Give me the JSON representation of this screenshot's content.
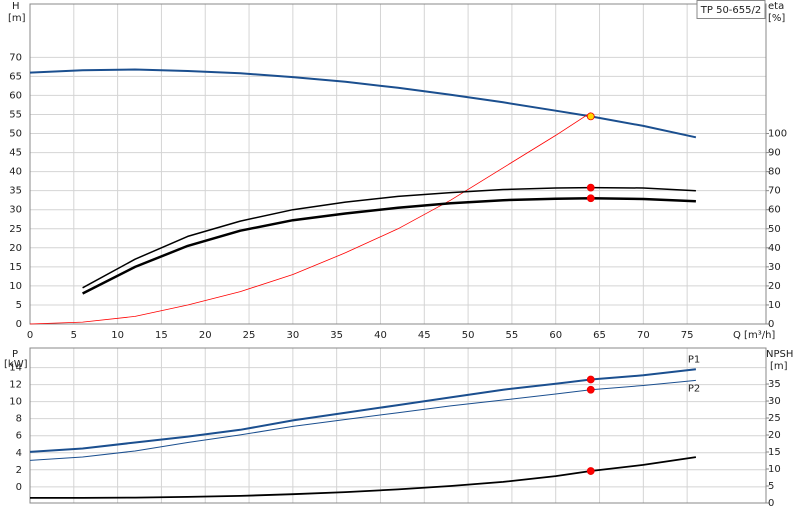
{
  "chart_data": [
    {
      "type": "line",
      "title": "TP 50-655/2",
      "ylabel": "H",
      "yunit": "[m]",
      "y2label": "eta",
      "y2unit": "[%]",
      "xlabel": "Q [m³/h]",
      "xlim": [
        0,
        84
      ],
      "xticks": [
        0,
        5,
        10,
        15,
        20,
        25,
        30,
        35,
        40,
        45,
        50,
        55,
        60,
        65,
        70,
        75
      ],
      "ylim": [
        0,
        84
      ],
      "yticks": [
        0,
        5,
        10,
        15,
        20,
        25,
        30,
        35,
        40,
        45,
        50,
        55,
        60,
        65,
        70
      ],
      "y2lim": [
        0,
        168
      ],
      "y2ticks": [
        0,
        10,
        20,
        30,
        40,
        50,
        60,
        70,
        80,
        90,
        100
      ],
      "grid": true,
      "show_xtick_labels": true,
      "series": [
        {
          "color": "#1b4f8f",
          "linewidth": 2,
          "x": [
            0,
            6,
            12,
            18,
            24,
            30,
            36,
            42,
            48,
            54,
            60,
            64,
            70,
            76
          ],
          "values": [
            66,
            66.6,
            66.8,
            66.4,
            65.8,
            64.8,
            63.6,
            62,
            60.2,
            58.2,
            56,
            54.5,
            52,
            49
          ]
        },
        {
          "color": "#ff0000",
          "linewidth": 0.8,
          "x": [
            0,
            6,
            12,
            18,
            24,
            30,
            36,
            42,
            48,
            54,
            60,
            64
          ],
          "values": [
            0,
            0.5,
            2,
            5,
            8.5,
            13,
            18.7,
            25,
            32.5,
            41,
            49.5,
            55.5
          ]
        },
        {
          "color": "#000000",
          "linewidth": 1.5,
          "axis": "y2",
          "x": [
            6,
            12,
            18,
            24,
            30,
            36,
            42,
            48,
            54,
            60,
            64,
            70,
            76
          ],
          "values": [
            19,
            34,
            46,
            54,
            60,
            64,
            67,
            69,
            70.6,
            71.4,
            71.6,
            71.4,
            70
          ]
        },
        {
          "color": "#000000",
          "linewidth": 2.5,
          "axis": "y2",
          "x": [
            6,
            12,
            18,
            24,
            30,
            36,
            42,
            48,
            54,
            60,
            64,
            70,
            76
          ],
          "values": [
            16,
            30,
            41,
            49,
            54.5,
            58,
            61,
            63.4,
            65,
            65.8,
            66,
            65.6,
            64.4
          ]
        },
        {
          "color": "#ff0000",
          "marker": true,
          "axis": "y2",
          "x": [
            64
          ],
          "values": [
            71.6
          ]
        },
        {
          "color": "#ff0000",
          "marker": true,
          "axis": "y2",
          "x": [
            64
          ],
          "values": [
            66
          ]
        },
        {
          "color": "#ffd700",
          "marker": true,
          "x": [
            64
          ],
          "values": [
            54.5
          ]
        }
      ]
    },
    {
      "type": "line",
      "ylabel": "P",
      "yunit": "[kW]",
      "y2label": "NPSH",
      "y2unit": "[m]",
      "xlim": [
        0,
        84
      ],
      "xticks": [
        0,
        5,
        10,
        15,
        20,
        25,
        30,
        35,
        40,
        45,
        50,
        55,
        60,
        65,
        70,
        75
      ],
      "ylim": [
        -1.9,
        16.3
      ],
      "yticks": [
        0,
        2,
        4,
        6,
        8,
        10,
        12,
        14
      ],
      "y2lim": [
        0,
        45.6
      ],
      "y2ticks": [
        0,
        5,
        10,
        15,
        20,
        25,
        30,
        35
      ],
      "grid": true,
      "show_xtick_labels": false,
      "series": [
        {
          "name": "P1",
          "color": "#1b4f8f",
          "linewidth": 2,
          "x": [
            0,
            6,
            12,
            18,
            24,
            30,
            36,
            42,
            48,
            54,
            60,
            64,
            70,
            76
          ],
          "values": [
            4.1,
            4.5,
            5.2,
            5.9,
            6.7,
            7.8,
            8.7,
            9.6,
            10.5,
            11.4,
            12.1,
            12.6,
            13.1,
            13.8
          ]
        },
        {
          "name": "P2",
          "color": "#1b4f8f",
          "linewidth": 1,
          "x": [
            0,
            6,
            12,
            18,
            24,
            30,
            36,
            42,
            48,
            54,
            60,
            64,
            70,
            76
          ],
          "values": [
            3.1,
            3.5,
            4.2,
            5.2,
            6.1,
            7.1,
            7.9,
            8.7,
            9.5,
            10.2,
            10.9,
            11.4,
            11.9,
            12.5
          ]
        },
        {
          "color": "#000000",
          "linewidth": 1.8,
          "axis": "y2",
          "x": [
            0,
            6,
            12,
            18,
            24,
            30,
            36,
            42,
            48,
            54,
            60,
            64,
            70,
            76
          ],
          "values": [
            1.5,
            1.5,
            1.6,
            1.8,
            2.1,
            2.6,
            3.2,
            4,
            5,
            6.2,
            7.9,
            9.4,
            11.2,
            13.5
          ]
        },
        {
          "color": "#ff0000",
          "marker": true,
          "x": [
            64
          ],
          "values": [
            12.6
          ]
        },
        {
          "color": "#ff0000",
          "marker": true,
          "x": [
            64
          ],
          "values": [
            11.4
          ]
        },
        {
          "color": "#ff0000",
          "marker": true,
          "axis": "y2",
          "x": [
            64
          ],
          "values": [
            9.4
          ]
        }
      ]
    }
  ]
}
